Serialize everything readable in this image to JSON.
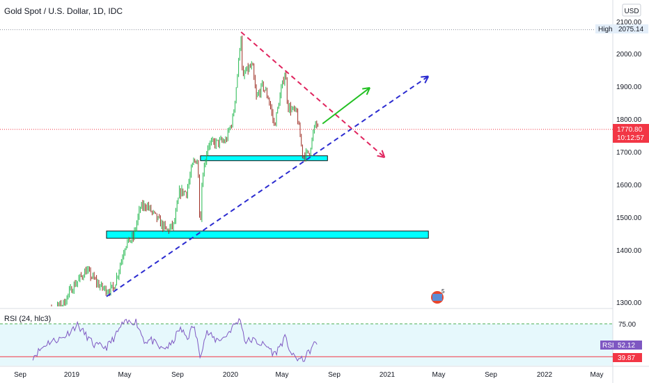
{
  "header": {
    "title": "Gold Spot / U.S. Dollar, 1D, IDC",
    "currency": "USD"
  },
  "price_axis": {
    "ticks": [
      "2100.00",
      "2000.00",
      "1900.00",
      "1800.00",
      "1700.00",
      "1600.00",
      "1500.00",
      "1400.00",
      "1300.00"
    ]
  },
  "badges": {
    "high_label": "High",
    "high_value": "2075.14",
    "last_price": "1770.80",
    "countdown": "10:12:57"
  },
  "rsi_panel": {
    "title": "RSI (24, hlc3)",
    "levels": [
      "75.00"
    ],
    "rsi_label": "RSI",
    "rsi_value": "52.12",
    "lower_value": "39.87"
  },
  "time_axis": {
    "ticks": [
      "Sep",
      "2019",
      "May",
      "Sep",
      "2020",
      "May",
      "Sep",
      "2021",
      "May",
      "Sep",
      "2022",
      "May"
    ]
  },
  "chart_data": [
    {
      "type": "candlestick",
      "title": "Gold Spot / U.S. Dollar, 1D, IDC",
      "ylim": [
        1240,
        2110
      ],
      "x_range": [
        "2018-08-01",
        "2022-06-01"
      ],
      "path_points": [
        {
          "date": "2018-08-15",
          "close": 1195
        },
        {
          "date": "2018-10-15",
          "close": 1215
        },
        {
          "date": "2018-12-01",
          "close": 1235
        },
        {
          "date": "2019-01-01",
          "close": 1285
        },
        {
          "date": "2019-02-20",
          "close": 1340
        },
        {
          "date": "2019-04-10",
          "close": 1290
        },
        {
          "date": "2019-05-01",
          "close": 1280
        },
        {
          "date": "2019-05-25",
          "close": 1285
        },
        {
          "date": "2019-06-15",
          "close": 1350
        },
        {
          "date": "2019-07-05",
          "close": 1420
        },
        {
          "date": "2019-08-01",
          "close": 1440
        },
        {
          "date": "2019-08-25",
          "close": 1530
        },
        {
          "date": "2019-09-15",
          "close": 1540
        },
        {
          "date": "2019-10-20",
          "close": 1500
        },
        {
          "date": "2019-11-25",
          "close": 1460
        },
        {
          "date": "2019-12-20",
          "close": 1480
        },
        {
          "date": "2020-01-08",
          "close": 1580
        },
        {
          "date": "2020-02-01",
          "close": 1580
        },
        {
          "date": "2020-02-24",
          "close": 1670
        },
        {
          "date": "2020-03-10",
          "close": 1680
        },
        {
          "date": "2020-03-19",
          "close": 1470
        },
        {
          "date": "2020-03-26",
          "close": 1625
        },
        {
          "date": "2020-04-15",
          "close": 1725
        },
        {
          "date": "2020-05-15",
          "close": 1730
        },
        {
          "date": "2020-06-15",
          "close": 1735
        },
        {
          "date": "2020-07-10",
          "close": 1805
        },
        {
          "date": "2020-07-28",
          "close": 1960
        },
        {
          "date": "2020-08-06",
          "close": 2070
        },
        {
          "date": "2020-08-12",
          "close": 1915
        },
        {
          "date": "2020-08-20",
          "close": 1945
        },
        {
          "date": "2020-09-15",
          "close": 1965
        },
        {
          "date": "2020-09-28",
          "close": 1865
        },
        {
          "date": "2020-10-20",
          "close": 1905
        },
        {
          "date": "2020-11-10",
          "close": 1865
        },
        {
          "date": "2020-11-30",
          "close": 1780
        },
        {
          "date": "2020-12-20",
          "close": 1875
        },
        {
          "date": "2021-01-06",
          "close": 1950
        },
        {
          "date": "2021-01-15",
          "close": 1840
        },
        {
          "date": "2021-02-15",
          "close": 1820
        },
        {
          "date": "2021-03-08",
          "close": 1690
        },
        {
          "date": "2021-03-30",
          "close": 1700
        },
        {
          "date": "2021-04-10",
          "close": 1745
        },
        {
          "date": "2021-04-22",
          "close": 1795
        },
        {
          "date": "2021-04-30",
          "close": 1770
        }
      ],
      "annotations": {
        "high_line": 2075.14,
        "last_price_line": 1770.8,
        "support_zones": [
          {
            "from": "2020-03-20",
            "to": "2021-06-01",
            "low": 1675,
            "high": 1690
          },
          {
            "from": "2019-05-01",
            "to": "2022-05-15",
            "low": 1438,
            "high": 1460
          }
        ],
        "trendlines": [
          {
            "name": "rising dashed",
            "color": "#2b2bd0",
            "from": {
              "date": "2019-05-01",
              "price": 1260
            },
            "to": {
              "date": "2022-05-15",
              "price": 1933
            }
          },
          {
            "name": "falling dashed",
            "color": "#e0245e",
            "from": {
              "date": "2020-08-07",
              "price": 2068
            },
            "to": {
              "date": "2021-12-15",
              "price": 1685
            }
          },
          {
            "name": "projection arrow",
            "color": "#22c022",
            "from": {
              "date": "2021-05-15",
              "price": 1788
            },
            "to": {
              "date": "2021-10-25",
              "price": 1898
            }
          }
        ]
      }
    },
    {
      "type": "line",
      "title": "RSI (24, hlc3)",
      "ylim": [
        33,
        82
      ],
      "reference_lines": [
        75,
        39.87
      ],
      "series": [
        {
          "name": "RSI",
          "x": [
            "2018-08-20",
            "2018-10-10",
            "2018-12-01",
            "2019-01-20",
            "2019-03-20",
            "2019-05-01",
            "2019-06-01",
            "2019-06-25",
            "2019-08-10",
            "2019-09-10",
            "2019-10-01",
            "2019-11-05",
            "2019-12-10",
            "2020-01-08",
            "2020-02-05",
            "2020-02-25",
            "2020-03-19",
            "2020-04-10",
            "2020-05-10",
            "2020-06-10",
            "2020-07-15",
            "2020-08-06",
            "2020-08-20",
            "2020-09-15",
            "2020-10-05",
            "2020-11-10",
            "2020-11-30",
            "2020-12-20",
            "2021-01-06",
            "2021-02-01",
            "2021-03-08",
            "2021-04-10",
            "2021-04-22",
            "2021-04-30"
          ],
          "values": [
            40,
            55,
            60,
            74,
            52,
            50,
            62,
            75,
            78,
            56,
            58,
            48,
            52,
            70,
            60,
            74,
            42,
            66,
            58,
            60,
            74,
            80,
            56,
            58,
            55,
            50,
            42,
            52,
            60,
            40,
            36,
            50,
            56,
            52
          ]
        }
      ]
    }
  ]
}
